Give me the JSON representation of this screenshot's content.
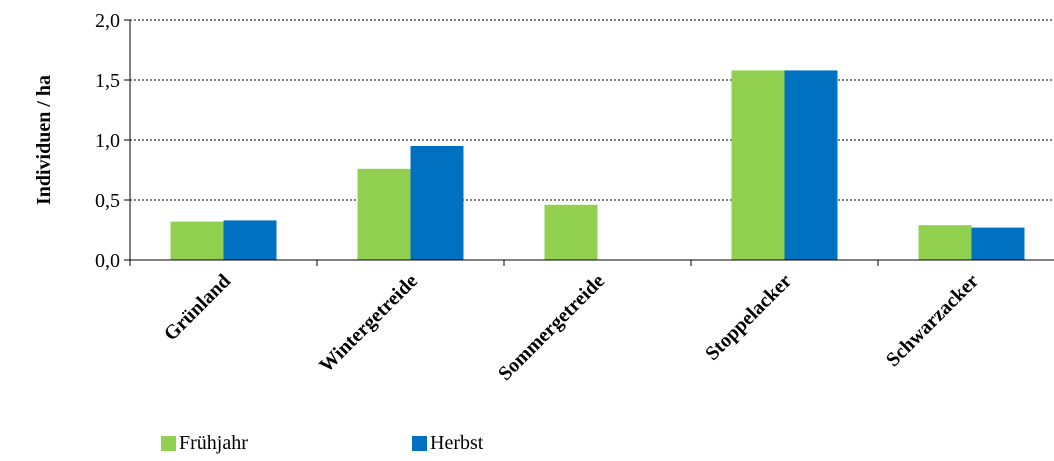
{
  "chart_data": {
    "type": "bar",
    "categories": [
      "Grünland",
      "Wintergetreide",
      "Sommergetreide",
      "Stoppelacker",
      "Schwarzacker"
    ],
    "series": [
      {
        "name": "Frühjahr",
        "values": [
          0.32,
          0.76,
          0.46,
          1.58,
          0.29
        ],
        "color": "#92d050"
      },
      {
        "name": "Herbst",
        "values": [
          0.33,
          0.95,
          null,
          1.58,
          0.27
        ],
        "color": "#0070c0"
      }
    ],
    "ylabel": "Individuen / ha",
    "xlabel": "",
    "ylim": [
      0,
      2.0
    ],
    "yticks": [
      "0,0",
      "0,5",
      "1,0",
      "1,5",
      "2,0"
    ],
    "grid": "horizontal dotted",
    "legend_position": "bottom-left"
  }
}
